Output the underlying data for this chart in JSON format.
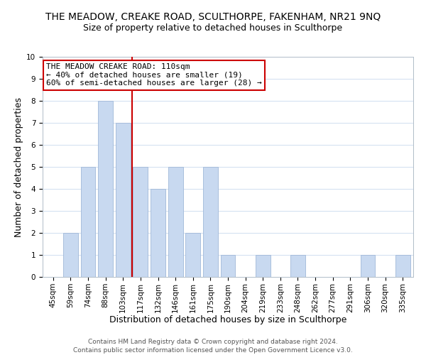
{
  "title": "THE MEADOW, CREAKE ROAD, SCULTHORPE, FAKENHAM, NR21 9NQ",
  "subtitle": "Size of property relative to detached houses in Sculthorpe",
  "xlabel": "Distribution of detached houses by size in Sculthorpe",
  "ylabel": "Number of detached properties",
  "bar_labels": [
    "45sqm",
    "59sqm",
    "74sqm",
    "88sqm",
    "103sqm",
    "117sqm",
    "132sqm",
    "146sqm",
    "161sqm",
    "175sqm",
    "190sqm",
    "204sqm",
    "219sqm",
    "233sqm",
    "248sqm",
    "262sqm",
    "277sqm",
    "291sqm",
    "306sqm",
    "320sqm",
    "335sqm"
  ],
  "bar_values": [
    0,
    2,
    5,
    8,
    7,
    5,
    4,
    5,
    2,
    5,
    1,
    0,
    1,
    0,
    1,
    0,
    0,
    0,
    1,
    0,
    1
  ],
  "bar_color": "#c8d9f0",
  "bar_edge_color": "#a0b8d8",
  "reference_line_color": "#cc0000",
  "ylim": [
    0,
    10
  ],
  "yticks": [
    0,
    1,
    2,
    3,
    4,
    5,
    6,
    7,
    8,
    9,
    10
  ],
  "grid_color": "#d0dff0",
  "annotation_title": "THE MEADOW CREAKE ROAD: 110sqm",
  "annotation_line1": "← 40% of detached houses are smaller (19)",
  "annotation_line2": "60% of semi-detached houses are larger (28) →",
  "annotation_box_color": "#ffffff",
  "annotation_box_edge": "#cc0000",
  "footer_line1": "Contains HM Land Registry data © Crown copyright and database right 2024.",
  "footer_line2": "Contains public sector information licensed under the Open Government Licence v3.0.",
  "title_fontsize": 10,
  "subtitle_fontsize": 9,
  "axis_label_fontsize": 9,
  "tick_fontsize": 7.5,
  "annotation_fontsize": 8,
  "footer_fontsize": 6.5
}
